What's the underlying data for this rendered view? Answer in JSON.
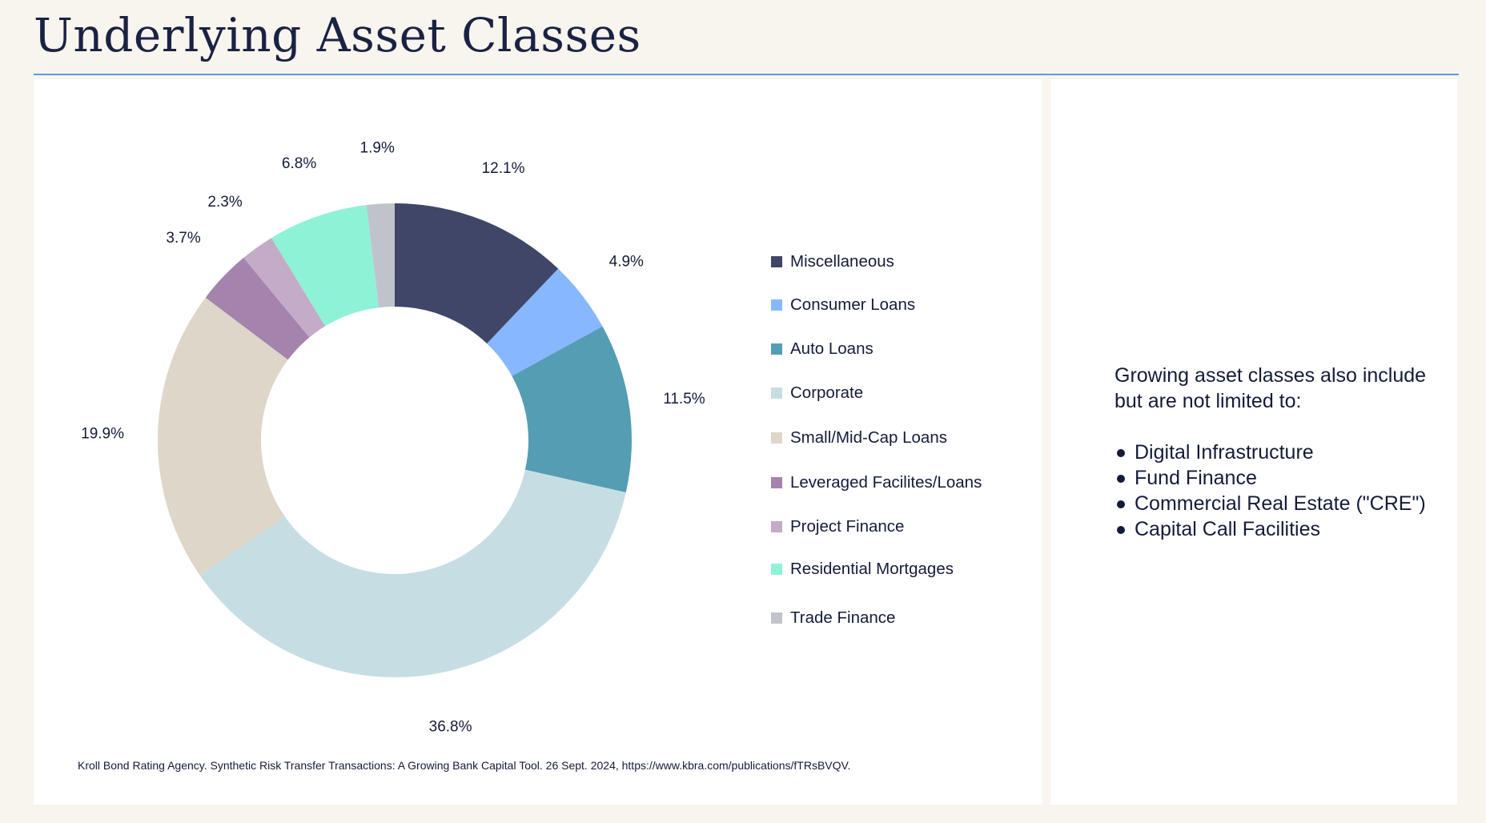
{
  "page": {
    "title": "Underlying Asset Classes",
    "source": "Kroll Bond Rating Agency. Synthetic Risk Transfer Transactions: A Growing Bank Capital Tool. 26 Sept. 2024, https://www.kbra.com/publications/fTRsBVQV."
  },
  "colors": {
    "background": "#f8f4ee",
    "rule": "#5b9be6",
    "text": "#141b3a"
  },
  "chart_data": {
    "type": "pie",
    "variant": "donut",
    "title": "",
    "legend_position": "right",
    "slices": [
      {
        "name": "Miscellaneous",
        "value": 12.1,
        "label": "12.1%",
        "color": "#3f4667"
      },
      {
        "name": "Consumer Loans",
        "value": 4.9,
        "label": "4.9%",
        "color": "#87b7ff"
      },
      {
        "name": "Auto Loans",
        "value": 11.5,
        "label": "11.5%",
        "color": "#549db3"
      },
      {
        "name": "Corporate",
        "value": 36.8,
        "label": "36.8%",
        "color": "#c6dee3"
      },
      {
        "name": "Small/Mid-Cap Loans",
        "value": 19.9,
        "label": "19.9%",
        "color": "#ded6c8"
      },
      {
        "name": "Leveraged Facilites/Loans",
        "value": 3.7,
        "label": "3.7%",
        "color": "#a484ad"
      },
      {
        "name": "Project Finance",
        "value": 2.3,
        "label": "2.3%",
        "color": "#c4abc7"
      },
      {
        "name": "Residential Mortgages",
        "value": 6.8,
        "label": "6.8%",
        "color": "#8ef2d6"
      },
      {
        "name": "Trade Finance",
        "value": 1.9,
        "label": "1.9%",
        "color": "#c0c3cb"
      }
    ]
  },
  "sidebar": {
    "heading": "Growing asset classes also include but are not limited to:",
    "items": [
      "Digital Infrastructure",
      "Fund Finance",
      "Commercial Real Estate (\"CRE\")",
      "Capital Call Facilities"
    ]
  }
}
